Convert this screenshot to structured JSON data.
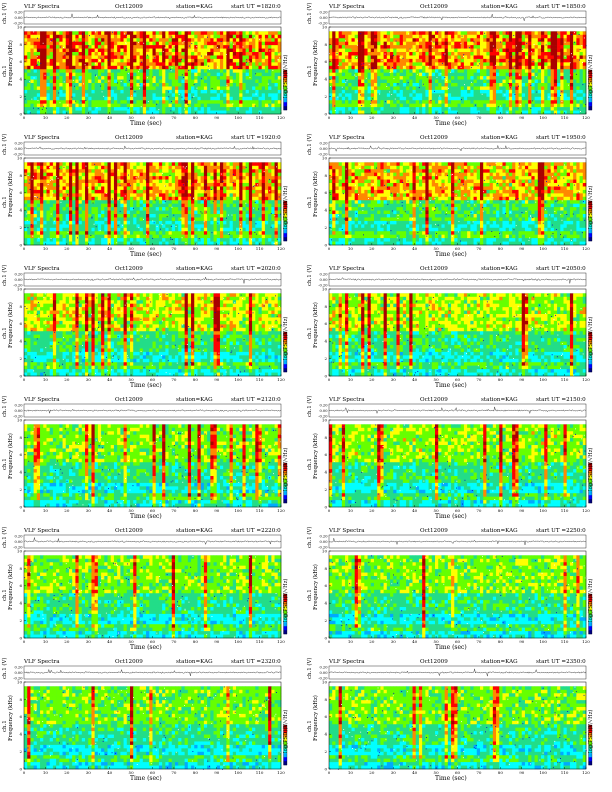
{
  "panels": [
    {
      "title": "VLF Spectra",
      "date": "Oct12009",
      "station": "station=KAG",
      "start": "start  UT =1820:0",
      "seed": 11,
      "intensity": 0.95
    },
    {
      "title": "VLF Spectra",
      "date": "Oct12009",
      "station": "station=KAG",
      "start": "start  UT =1850:0",
      "seed": 23,
      "intensity": 0.92
    },
    {
      "title": "VLF Spectra",
      "date": "Oct12009",
      "station": "station=KAG",
      "start": "start  UT =1920:0",
      "seed": 37,
      "intensity": 0.85
    },
    {
      "title": "VLF Spectra",
      "date": "Oct12009",
      "station": "station=KAG",
      "start": "start  UT =1950:0",
      "seed": 41,
      "intensity": 0.82
    },
    {
      "title": "VLF Spectra",
      "date": "Oct12009",
      "station": "station=KAG",
      "start": "start  UT =2020:0",
      "seed": 53,
      "intensity": 0.62
    },
    {
      "title": "VLF Spectra",
      "date": "Oct12009",
      "station": "station=KAG",
      "start": "start  UT =2050:0",
      "seed": 67,
      "intensity": 0.55
    },
    {
      "title": "VLF Spectra",
      "date": "Oct12009",
      "station": "station=KAG",
      "start": "start  UT =2120:0",
      "seed": 71,
      "intensity": 0.42
    },
    {
      "title": "VLF Spectra",
      "date": "Oct12009",
      "station": "station=KAG",
      "start": "start  UT =2150:0",
      "seed": 83,
      "intensity": 0.45
    },
    {
      "title": "VLF Spectra",
      "date": "Oct12009",
      "station": "station=KAG",
      "start": "start  UT =2220:0",
      "seed": 97,
      "intensity": 0.4
    },
    {
      "title": "VLF Spectra",
      "date": "Oct12009",
      "station": "station=KAG",
      "start": "start  UT =2250:0",
      "seed": 101,
      "intensity": 0.42
    },
    {
      "title": "VLF Spectra",
      "date": "Oct12009",
      "station": "station=KAG",
      "start": "start  UT =2320:0",
      "seed": 113,
      "intensity": 0.36
    },
    {
      "title": "VLF Spectra",
      "date": "Oct12009",
      "station": "station=KAG",
      "start": "start  UT =2350:0",
      "seed": 127,
      "intensity": 0.38
    }
  ],
  "labels": {
    "ts_ylabel": "ch.1 (V)",
    "ch_label": "ch.1",
    "freq_ylabel": "Frequency (kHz)",
    "xlabel": "Time (sec)",
    "colorbar_label": "log(PSD)(V/√Hz)"
  },
  "colors": {
    "colormap": [
      "#000080",
      "#0000ff",
      "#00aaff",
      "#00ffff",
      "#22dd88",
      "#66ff00",
      "#ffff00",
      "#ff8800",
      "#ff0000",
      "#aa0000"
    ]
  },
  "chart_data": {
    "type": "heatmap",
    "panel_count": 12,
    "xlabel": "Time (sec)",
    "ylabel": "Frequency (kHz)",
    "xlim": [
      0,
      120
    ],
    "ylim": [
      0,
      10
    ],
    "xticks": [
      "0",
      "10",
      "20",
      "30",
      "40",
      "50",
      "60",
      "70",
      "80",
      "90",
      "100",
      "110",
      "120"
    ],
    "yticks": [
      "0",
      "2",
      "4",
      "6",
      "8",
      "10"
    ],
    "ts_ylim": [
      -0.2,
      0.2
    ],
    "ts_yticks": [
      "0.20",
      "0.00",
      "-0.20"
    ],
    "colorbar_label": "log(PSD)(V/√Hz)"
  }
}
